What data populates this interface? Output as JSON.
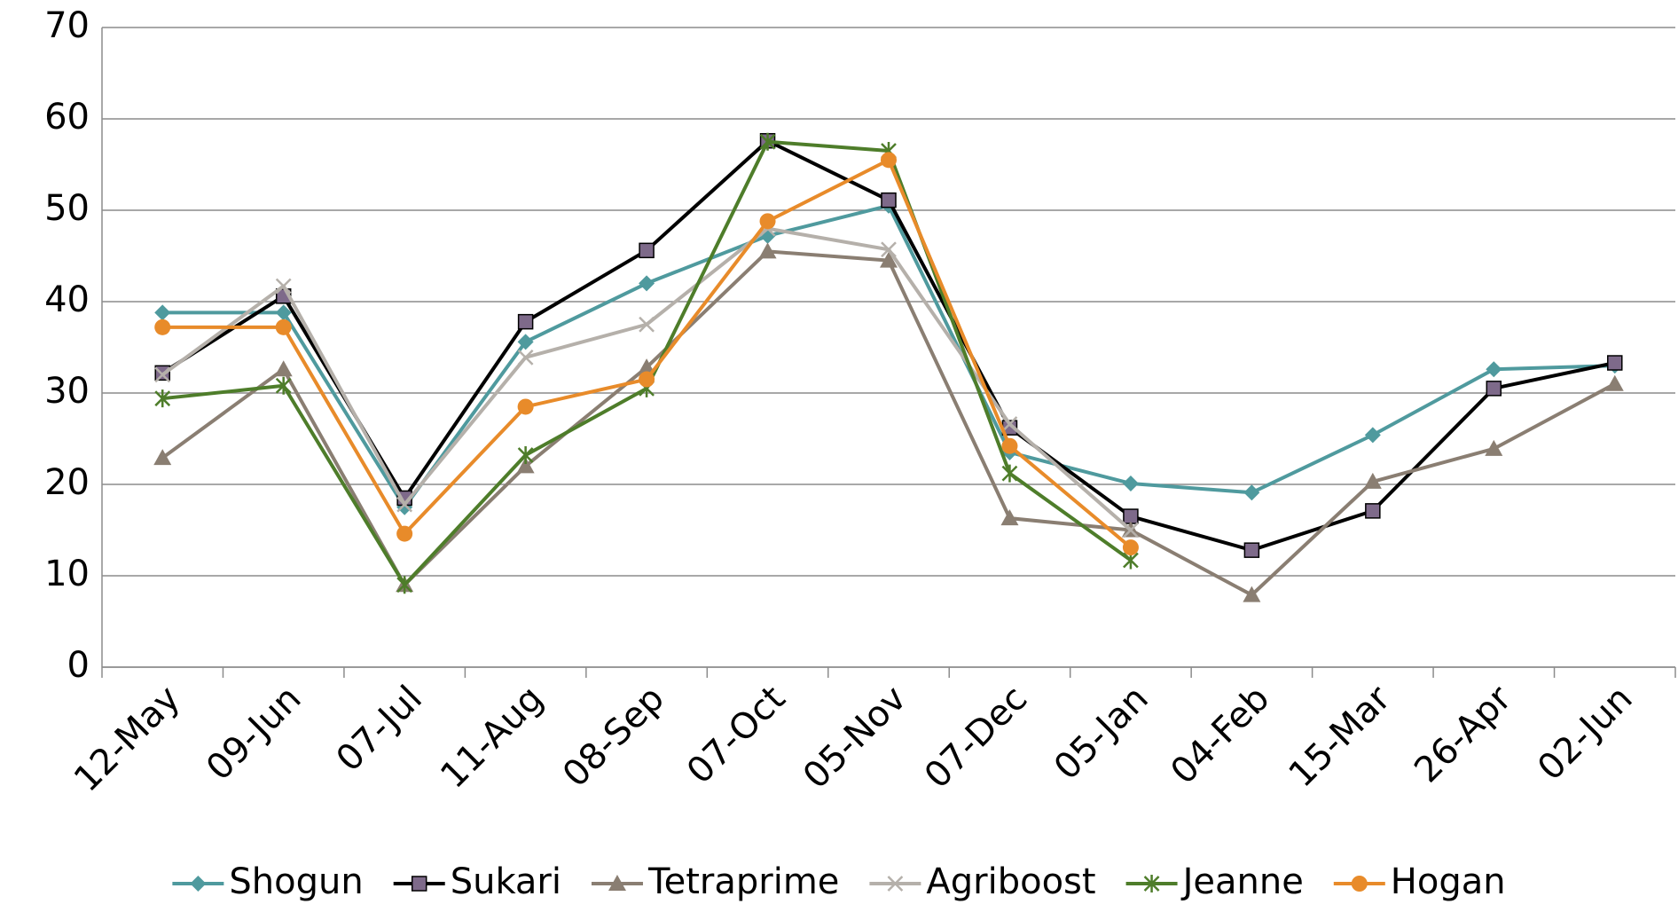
{
  "chart_data": {
    "type": "line",
    "categories": [
      "12-May",
      "09-Jun",
      "07-Jul",
      "11-Aug",
      "08-Sep",
      "07-Oct",
      "05-Nov",
      "07-Dec",
      "05-Jan",
      "04-Feb",
      "15-Mar",
      "26-Apr",
      "02-Jun"
    ],
    "series": [
      {
        "name": "Shogun",
        "color": "#4f9a9e",
        "marker": "diamond",
        "values": [
          38.8,
          38.8,
          17.5,
          35.6,
          42.0,
          47.2,
          50.5,
          23.5,
          20.1,
          19.1,
          25.4,
          32.6,
          33.0
        ]
      },
      {
        "name": "Sukari",
        "color": "#000000",
        "marker_color": "#7e6a8a",
        "marker": "square",
        "values": [
          32.2,
          40.6,
          18.5,
          37.8,
          45.6,
          57.6,
          51.1,
          26.2,
          16.5,
          12.8,
          17.1,
          30.5,
          33.3
        ]
      },
      {
        "name": "Tetraprime",
        "color": "#8a7e72",
        "marker": "triangle",
        "values": [
          22.9,
          32.6,
          9.0,
          22.0,
          32.8,
          45.5,
          44.5,
          16.3,
          15.0,
          7.9,
          20.3,
          23.9,
          31.0
        ]
      },
      {
        "name": "Agriboost",
        "color": "#b5b0aa",
        "marker": "x",
        "values": [
          32.0,
          41.7,
          17.8,
          33.9,
          37.5,
          48.0,
          45.7,
          26.6,
          15.0,
          null,
          null,
          null,
          null
        ]
      },
      {
        "name": "Jeanne",
        "color": "#4e7d2a",
        "marker": "star",
        "values": [
          29.4,
          30.8,
          9.0,
          23.2,
          30.5,
          57.5,
          56.5,
          21.2,
          11.7,
          null,
          null,
          null,
          null
        ]
      },
      {
        "name": "Hogan",
        "color": "#e88b2a",
        "marker": "circle",
        "values": [
          37.2,
          37.2,
          14.6,
          28.5,
          31.5,
          48.8,
          55.5,
          24.2,
          13.1,
          null,
          null,
          null,
          null
        ]
      }
    ],
    "ylim": [
      0,
      70
    ],
    "yticks": [
      0,
      10,
      20,
      30,
      40,
      50,
      60,
      70
    ],
    "grid": true,
    "legend": "bottom"
  }
}
